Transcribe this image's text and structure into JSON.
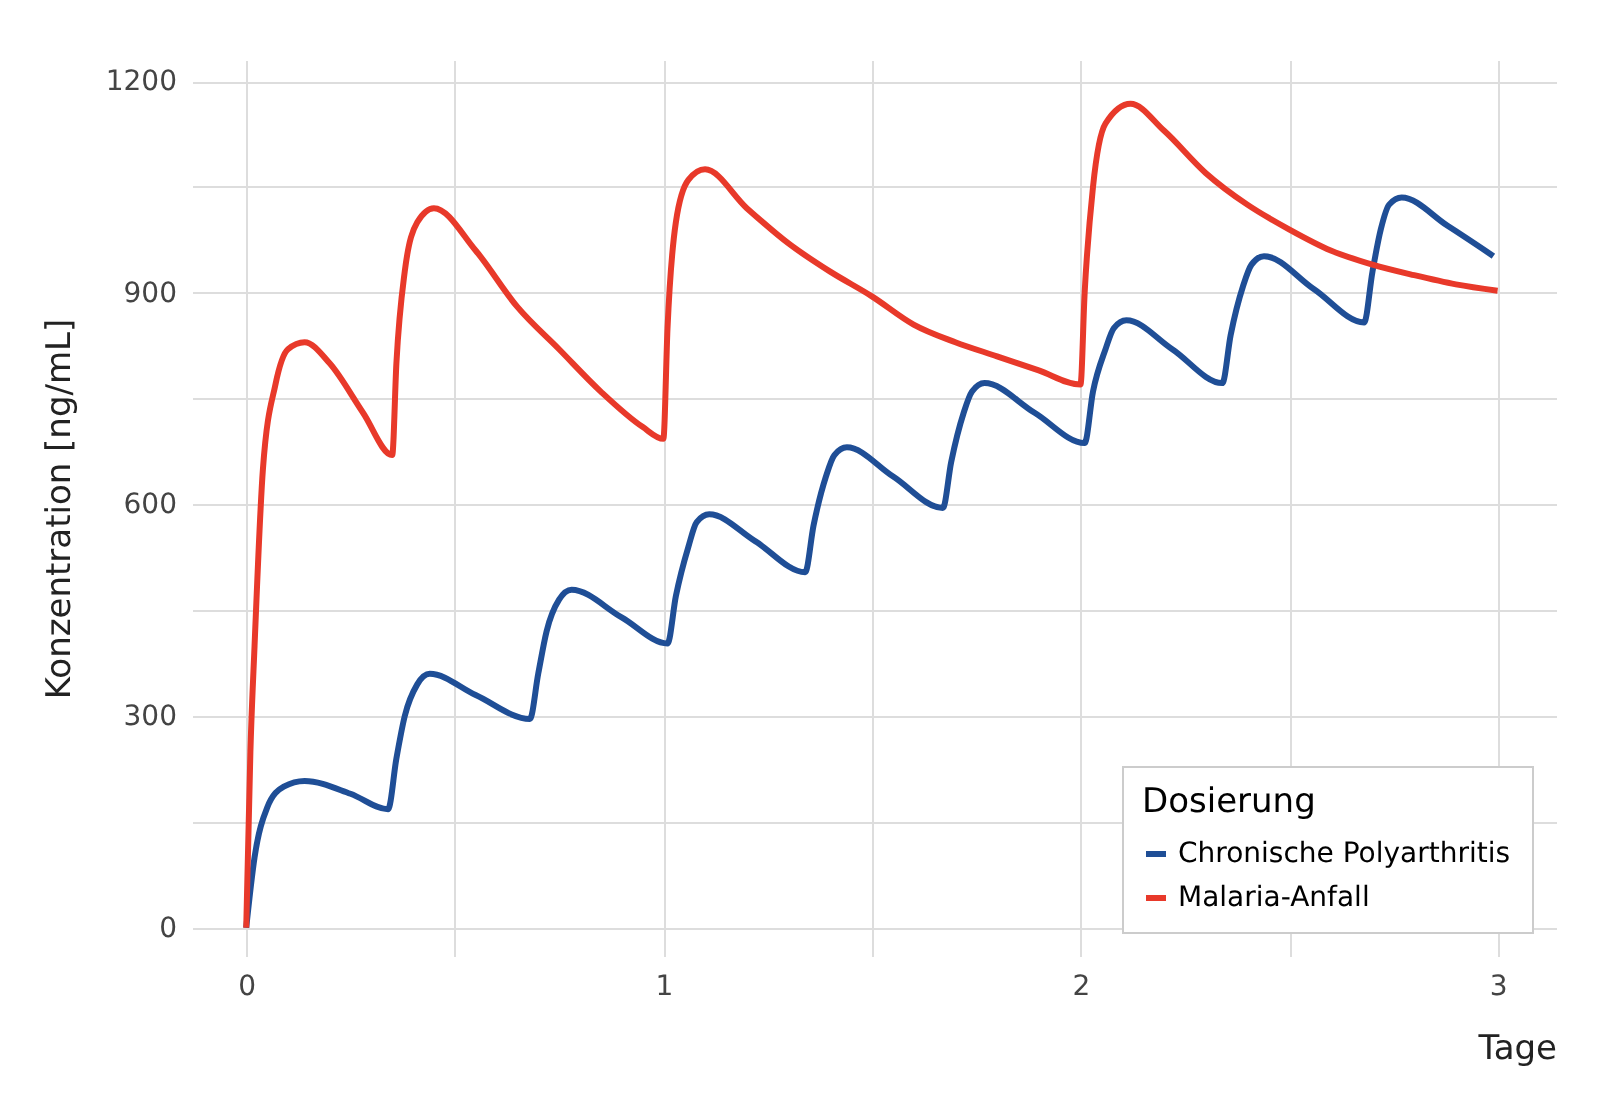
{
  "chart_data": {
    "type": "line",
    "xlabel": "Tage",
    "ylabel": "Konzentration [ng/mL]",
    "legend_title": "Dosierung",
    "xlim": [
      -0.13,
      3.14
    ],
    "ylim": [
      -40,
      1230
    ],
    "xticks": [
      0,
      {
        "value": 0.5,
        "label": null
      },
      1,
      {
        "value": 1.5,
        "label": null
      },
      2,
      {
        "value": 2.5,
        "label": null
      },
      3
    ],
    "yticks": [
      0,
      {
        "value": 150,
        "label": null
      },
      300,
      {
        "value": 450,
        "label": null
      },
      600,
      {
        "value": 750,
        "label": null
      },
      900,
      {
        "value": 1050,
        "label": null
      },
      1200
    ],
    "grid": true,
    "legend": "bottom right",
    "line_style": "solid",
    "marker": "none",
    "series": [
      {
        "name": "Chronische Polyarthritis",
        "color": "#1f4e96",
        "x": [
          0,
          0.02,
          0.05,
          0.09,
          0.14,
          0.25,
          0.34,
          0.36,
          0.38,
          0.41,
          0.44,
          0.55,
          0.68,
          0.7,
          0.72,
          0.75,
          0.78,
          0.9,
          1.01,
          1.03,
          1.06,
          1.08,
          1.11,
          1.22,
          1.34,
          1.36,
          1.39,
          1.41,
          1.44,
          1.55,
          1.67,
          1.69,
          1.72,
          1.74,
          1.77,
          1.89,
          2.01,
          2.03,
          2.06,
          2.08,
          2.11,
          2.22,
          2.34,
          2.36,
          2.39,
          2.41,
          2.44,
          2.56,
          2.68,
          2.7,
          2.72,
          2.74,
          2.77,
          2.88,
          2.99
        ],
        "values": [
          0,
          100,
          170,
          200,
          208,
          190,
          168,
          240,
          300,
          345,
          360,
          330,
          296,
          360,
          420,
          465,
          479,
          440,
          403,
          470,
          540,
          575,
          586,
          548,
          504,
          570,
          640,
          670,
          681,
          640,
          595,
          660,
          730,
          760,
          772,
          730,
          687,
          760,
          820,
          850,
          861,
          820,
          772,
          840,
          910,
          940,
          952,
          905,
          858,
          930,
          990,
          1025,
          1035,
          995,
          952
        ]
      },
      {
        "name": "Malaria-Anfall",
        "color": "#e8392a",
        "x": [
          0,
          0.01,
          0.02,
          0.04,
          0.07,
          0.1,
          0.14,
          0.2,
          0.28,
          0.35,
          0.36,
          0.38,
          0.41,
          0.45,
          0.55,
          0.65,
          0.75,
          0.85,
          0.95,
          1.0,
          1.01,
          1.03,
          1.06,
          1.1,
          1.2,
          1.3,
          1.4,
          1.5,
          1.6,
          1.7,
          1.8,
          1.9,
          2.0,
          2.01,
          2.03,
          2.06,
          2.12,
          2.2,
          2.3,
          2.4,
          2.5,
          2.6,
          2.7,
          2.8,
          2.9,
          3.0
        ],
        "values": [
          0,
          250,
          400,
          650,
          770,
          820,
          830,
          800,
          730,
          670,
          800,
          930,
          1000,
          1020,
          960,
          880,
          820,
          760,
          710,
          693,
          850,
          1000,
          1060,
          1075,
          1020,
          970,
          930,
          895,
          855,
          830,
          810,
          790,
          770,
          900,
          1050,
          1140,
          1168,
          1130,
          1070,
          1025,
          990,
          960,
          940,
          925,
          912,
          903
        ]
      }
    ]
  }
}
